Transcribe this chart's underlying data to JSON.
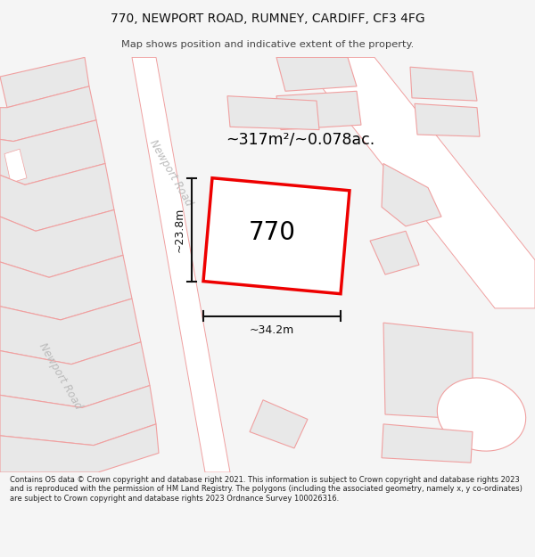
{
  "title_line1": "770, NEWPORT ROAD, RUMNEY, CARDIFF, CF3 4FG",
  "title_line2": "Map shows position and indicative extent of the property.",
  "area_label": "~317m²/~0.078ac.",
  "number_label": "770",
  "dim_horiz": "~34.2m",
  "dim_vert": "~23.8m",
  "road_label_1": "Newport Road",
  "road_label_2": "Newport Road",
  "footer_text": "Contains OS data © Crown copyright and database right 2021. This information is subject to Crown copyright and database rights 2023 and is reproduced with the permission of HM Land Registry. The polygons (including the associated geometry, namely x, y co-ordinates) are subject to Crown copyright and database rights 2023 Ordnance Survey 100026316.",
  "bg_color": "#f5f5f5",
  "map_bg": "#ffffff",
  "plot_color_fill": "#e8e8e8",
  "plot_edge_color": "#f0a0a0",
  "highlight_edge": "#ee0000",
  "highlight_fill": "#ffffff",
  "road_edge": "#f0a0a0",
  "road_label_color": "#bbbbbb",
  "dim_color": "#111111",
  "title_color": "#111111",
  "subtitle_color": "#444444",
  "footer_color": "#222222"
}
